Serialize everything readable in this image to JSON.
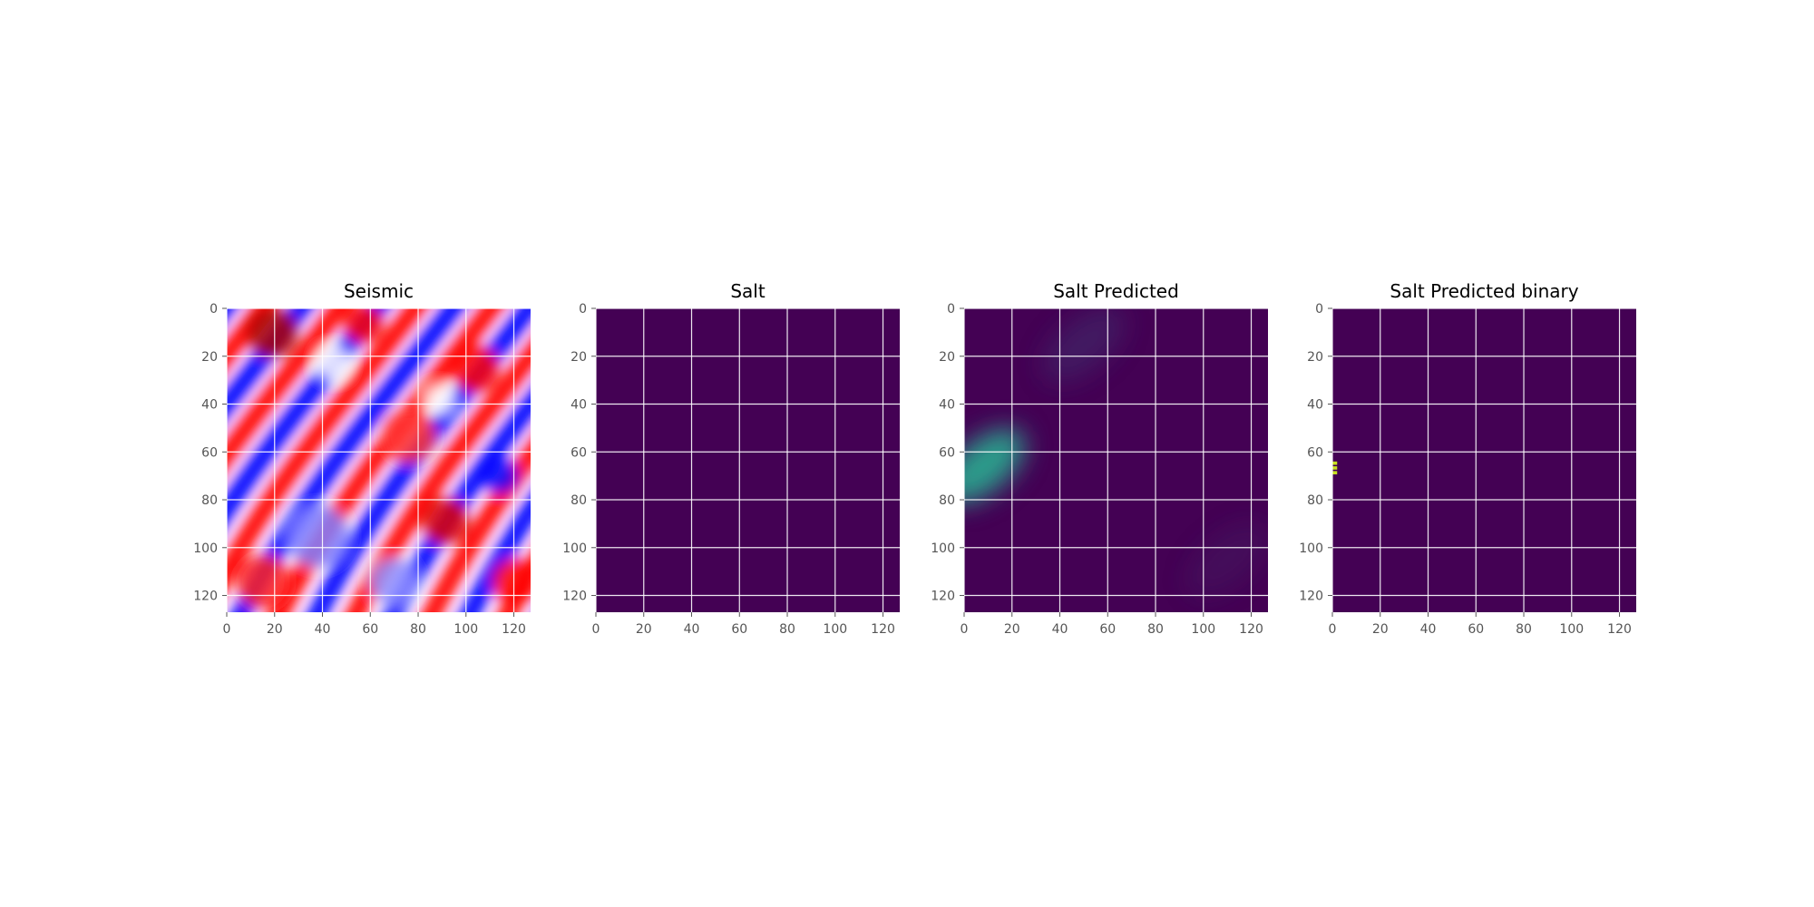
{
  "chart_data": [
    {
      "type": "heatmap",
      "title": "Seismic",
      "colormap": "seismic",
      "xlim": [
        0,
        127
      ],
      "ylim": [
        127,
        0
      ],
      "xticks": [
        0,
        20,
        40,
        60,
        80,
        100,
        120
      ],
      "yticks": [
        0,
        20,
        40,
        60,
        80,
        100,
        120
      ],
      "grid": true,
      "grid_color": "#ffffff",
      "colors": {
        "positive": "#ff0000",
        "negative": "#0000ff",
        "zero": "#ffffff"
      }
    },
    {
      "type": "heatmap",
      "title": "Salt",
      "colormap": "viridis",
      "xlim": [
        0,
        127
      ],
      "ylim": [
        127,
        0
      ],
      "xticks": [
        0,
        20,
        40,
        60,
        80,
        100,
        120
      ],
      "yticks": [
        0,
        20,
        40,
        60,
        80,
        100,
        120
      ],
      "grid": true,
      "grid_color": "#ffffff",
      "fill_value": 0,
      "colors": {
        "low": "#440154"
      }
    },
    {
      "type": "heatmap",
      "title": "Salt Predicted",
      "colormap": "viridis",
      "xlim": [
        0,
        127
      ],
      "ylim": [
        127,
        0
      ],
      "xticks": [
        0,
        20,
        40,
        60,
        80,
        100,
        120
      ],
      "yticks": [
        0,
        20,
        40,
        60,
        80,
        100,
        120
      ],
      "grid": true,
      "grid_color": "#ffffff",
      "colors": {
        "low": "#440154",
        "mid": "#3e5f8a",
        "high": "#2d9f8c"
      },
      "hotspots": [
        {
          "x": 8,
          "y": 66,
          "value": 0.45
        },
        {
          "x": 50,
          "y": 15,
          "value": 0.12
        },
        {
          "x": 110,
          "y": 105,
          "value": 0.06
        }
      ]
    },
    {
      "type": "heatmap",
      "title": "Salt Predicted binary",
      "colormap": "viridis",
      "xlim": [
        0,
        127
      ],
      "ylim": [
        127,
        0
      ],
      "xticks": [
        0,
        20,
        40,
        60,
        80,
        100,
        120
      ],
      "yticks": [
        0,
        20,
        40,
        60,
        80,
        100,
        120
      ],
      "grid": true,
      "grid_color": "#ffffff",
      "fill_value": 0,
      "colors": {
        "low": "#440154",
        "high": "#c8e020"
      },
      "positive_pixels": [
        {
          "x": 1,
          "y": 64
        },
        {
          "x": 1,
          "y": 66
        },
        {
          "x": 1,
          "y": 68
        }
      ]
    }
  ]
}
